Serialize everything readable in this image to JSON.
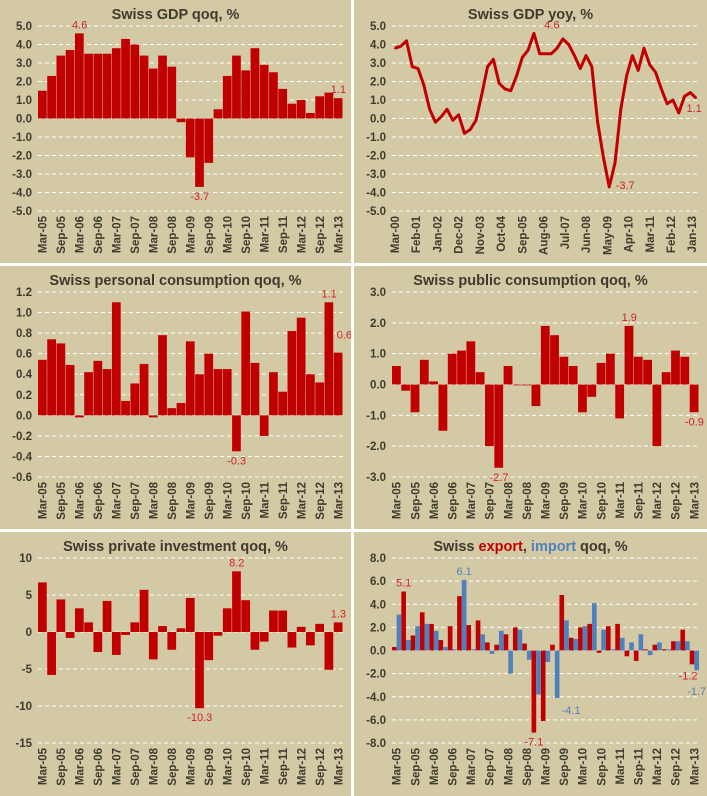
{
  "colors": {
    "background": "#D3CAA5",
    "bar": "#C00000",
    "import": "#4F81BD",
    "gridline": "#FFFFFF",
    "label_text": "#3F3A2E"
  },
  "chart_data": [
    {
      "type": "bar",
      "title_parts": [
        {
          "text": "Swiss GDP qoq, %",
          "color": "#3F3A2E"
        }
      ],
      "ylim": [
        -5,
        5
      ],
      "yticks": [
        5,
        4,
        3,
        2,
        1,
        0,
        -1,
        -2,
        -3,
        -4,
        -5
      ],
      "ytick_decimals": 1,
      "grid": true,
      "x_labels": [
        "Mar-05",
        "Sep-05",
        "Mar-06",
        "Sep-06",
        "Mar-07",
        "Sep-07",
        "Mar-08",
        "Sep-08",
        "Mar-09",
        "Sep-09",
        "Mar-10",
        "Sep-10",
        "Mar-11",
        "Sep-11",
        "Mar-12",
        "Sep-12",
        "Mar-13"
      ],
      "series": [
        {
          "color": "#C00000",
          "values": [
            1.5,
            2.3,
            3.4,
            3.7,
            4.6,
            3.5,
            3.5,
            3.5,
            3.8,
            4.3,
            4.0,
            3.4,
            2.7,
            3.4,
            2.8,
            -0.2,
            -2.1,
            -3.7,
            -2.4,
            0.5,
            2.3,
            3.4,
            2.6,
            3.8,
            2.9,
            2.5,
            1.6,
            0.8,
            1.0,
            0.3,
            1.2,
            1.4,
            1.1
          ]
        }
      ],
      "annotations": [
        {
          "series": 0,
          "index": 4,
          "text": "4.6"
        },
        {
          "series": 0,
          "index": 17,
          "text": "-3.7"
        },
        {
          "series": 0,
          "index": 32,
          "text": "1.1"
        }
      ]
    },
    {
      "type": "line",
      "title_parts": [
        {
          "text": "Swiss GDP yoy, %",
          "color": "#3F3A2E"
        }
      ],
      "ylim": [
        -5,
        5
      ],
      "yticks": [
        5,
        4,
        3,
        2,
        1,
        0,
        -1,
        -2,
        -3,
        -4,
        -5
      ],
      "ytick_decimals": 1,
      "grid": true,
      "x_labels": [
        "Mar-00",
        "Feb-01",
        "Jan-02",
        "Dec-02",
        "Nov-03",
        "Oct-04",
        "Sep-05",
        "Aug-06",
        "Jul-07",
        "Jun-08",
        "May-09",
        "Apr-10",
        "Mar-11",
        "Feb-12",
        "Jan-13"
      ],
      "series": [
        {
          "color": "#C00000",
          "values": [
            3.8,
            3.9,
            4.2,
            2.8,
            2.7,
            1.8,
            0.5,
            -0.2,
            0.1,
            0.5,
            -0.1,
            0.2,
            -0.8,
            -0.6,
            -0.1,
            1.3,
            2.8,
            3.2,
            1.9,
            1.6,
            1.5,
            2.3,
            3.3,
            3.7,
            4.6,
            3.5,
            3.5,
            3.5,
            3.8,
            4.3,
            4.0,
            3.4,
            2.7,
            3.4,
            2.8,
            -0.2,
            -2.1,
            -3.7,
            -2.4,
            0.5,
            2.3,
            3.4,
            2.6,
            3.8,
            2.9,
            2.5,
            1.6,
            0.8,
            1.0,
            0.3,
            1.2,
            1.4,
            1.1
          ]
        }
      ],
      "annotations": [
        {
          "series": 0,
          "index": 24,
          "text": "4.6"
        },
        {
          "series": 0,
          "index": 37,
          "text": "-3.7"
        },
        {
          "series": 0,
          "index": 52,
          "text": "1.1"
        }
      ]
    },
    {
      "type": "bar",
      "title_parts": [
        {
          "text": "Swiss personal consumption qoq, %",
          "color": "#3F3A2E"
        }
      ],
      "ylim": [
        -0.6,
        1.2
      ],
      "yticks": [
        1.2,
        1.0,
        0.8,
        0.6,
        0.4,
        0.2,
        0.0,
        -0.2,
        -0.4,
        -0.6
      ],
      "ytick_decimals": 1,
      "grid": true,
      "x_labels": [
        "Mar-05",
        "Sep-05",
        "Mar-06",
        "Sep-06",
        "Mar-07",
        "Sep-07",
        "Mar-08",
        "Sep-08",
        "Mar-09",
        "Sep-09",
        "Mar-10",
        "Sep-10",
        "Mar-11",
        "Sep-11",
        "Mar-12",
        "Sep-12",
        "Mar-13"
      ],
      "series": [
        {
          "color": "#C00000",
          "values": [
            0.54,
            0.74,
            0.7,
            0.49,
            -0.02,
            0.42,
            0.53,
            0.45,
            1.1,
            0.14,
            0.31,
            0.5,
            -0.02,
            0.78,
            0.07,
            0.12,
            0.72,
            0.4,
            0.6,
            0.45,
            0.45,
            -0.35,
            1.01,
            0.51,
            -0.2,
            0.42,
            0.23,
            0.82,
            0.95,
            0.4,
            0.32,
            1.1,
            0.61
          ]
        }
      ],
      "annotations": [
        {
          "series": 0,
          "index": 21,
          "text": "-0.3"
        },
        {
          "series": 0,
          "index": 31,
          "text": "1.1"
        },
        {
          "series": 0,
          "index": 32,
          "text": "0.6"
        }
      ]
    },
    {
      "type": "bar",
      "title_parts": [
        {
          "text": "Swiss public consumption qoq, %",
          "color": "#3F3A2E"
        }
      ],
      "ylim": [
        -3,
        3
      ],
      "yticks": [
        3,
        2,
        1,
        0,
        -1,
        -2,
        -3
      ],
      "ytick_decimals": 1,
      "grid": true,
      "x_labels": [
        "Mar-05",
        "Sep-05",
        "Mar-06",
        "Sep-06",
        "Mar-07",
        "Sep-07",
        "Mar-08",
        "Sep-08",
        "Mar-09",
        "Sep-09",
        "Mar-10",
        "Sep-10",
        "Mar-11",
        "Sep-11",
        "Mar-12",
        "Sep-12",
        "Mar-13"
      ],
      "series": [
        {
          "color": "#C00000",
          "values": [
            0.6,
            -0.2,
            -0.9,
            0.8,
            0.1,
            -1.5,
            1.0,
            1.1,
            1.4,
            0.4,
            -2.0,
            -2.7,
            0.6,
            0.0,
            0.0,
            -0.7,
            1.9,
            1.6,
            0.9,
            0.6,
            -0.9,
            -0.4,
            0.7,
            1.0,
            -1.1,
            1.9,
            0.9,
            0.8,
            -2.0,
            0.4,
            1.1,
            0.9,
            -0.9
          ]
        }
      ],
      "annotations": [
        {
          "series": 0,
          "index": 11,
          "text": "-2.7"
        },
        {
          "series": 0,
          "index": 25,
          "text": "1.9"
        },
        {
          "series": 0,
          "index": 32,
          "text": "-0.9"
        }
      ]
    },
    {
      "type": "bar",
      "title_parts": [
        {
          "text": "Swiss private investment qoq, %",
          "color": "#3F3A2E"
        }
      ],
      "ylim": [
        -15,
        10
      ],
      "yticks": [
        10,
        5,
        0,
        -5,
        -10,
        -15
      ],
      "ytick_decimals": 0,
      "grid": true,
      "x_labels": [
        "Mar-05",
        "Sep-05",
        "Mar-06",
        "Sep-06",
        "Mar-07",
        "Sep-07",
        "Mar-08",
        "Sep-08",
        "Mar-09",
        "Sep-09",
        "Mar-10",
        "Sep-10",
        "Mar-11",
        "Sep-11",
        "Mar-12",
        "Sep-12",
        "Mar-13"
      ],
      "series": [
        {
          "color": "#C00000",
          "values": [
            6.7,
            -5.8,
            4.4,
            -0.8,
            3.2,
            1.3,
            -2.7,
            4.2,
            -3.1,
            -0.4,
            1.3,
            5.7,
            -3.7,
            0.8,
            -2.4,
            0.5,
            4.6,
            -10.3,
            -3.8,
            -0.5,
            3.2,
            8.2,
            4.3,
            -2.4,
            -1.3,
            2.9,
            2.9,
            -2.1,
            0.7,
            -1.8,
            1.1,
            -5.1,
            1.3
          ]
        }
      ],
      "annotations": [
        {
          "series": 0,
          "index": 17,
          "text": "-10.3"
        },
        {
          "series": 0,
          "index": 21,
          "text": "8.2"
        },
        {
          "series": 0,
          "index": 32,
          "text": "1.3"
        }
      ]
    },
    {
      "type": "bar",
      "title_parts": [
        {
          "text": "Swiss ",
          "color": "#3F3A2E"
        },
        {
          "text": "export",
          "color": "#C00000"
        },
        {
          "text": ", ",
          "color": "#3F3A2E"
        },
        {
          "text": "import",
          "color": "#4F81BD"
        },
        {
          "text": " qoq, %",
          "color": "#3F3A2E"
        }
      ],
      "ylim": [
        -8,
        8
      ],
      "yticks": [
        8,
        6,
        4,
        2,
        0,
        -2,
        -4,
        -6,
        -8
      ],
      "ytick_decimals": 1,
      "grid": true,
      "x_labels": [
        "Mar-05",
        "Sep-05",
        "Mar-06",
        "Sep-06",
        "Mar-07",
        "Sep-07",
        "Mar-08",
        "Sep-08",
        "Mar-09",
        "Sep-09",
        "Mar-10",
        "Sep-10",
        "Mar-11",
        "Sep-11",
        "Mar-12",
        "Sep-12",
        "Mar-13"
      ],
      "series": [
        {
          "name": "export",
          "color": "#C00000",
          "values": [
            0.3,
            5.1,
            1.3,
            3.3,
            2.3,
            0.9,
            2.1,
            4.7,
            2.2,
            2.6,
            0.7,
            0.5,
            1.4,
            2.0,
            0.6,
            -7.1,
            -6.1,
            0.5,
            4.8,
            1.1,
            2.0,
            2.3,
            -0.2,
            2.1,
            2.3,
            -0.5,
            -0.9,
            0.1,
            0.5,
            0.1,
            0.8,
            1.8,
            -1.2
          ]
        },
        {
          "name": "import",
          "color": "#4F81BD",
          "values": [
            3.1,
            0.9,
            2.1,
            2.3,
            1.7,
            0.3,
            0.1,
            6.1,
            0.1,
            1.4,
            -0.3,
            1.7,
            -2.0,
            1.8,
            -0.8,
            -3.8,
            -1.0,
            -4.1,
            2.6,
            1.0,
            2.1,
            4.1,
            1.8,
            0.1,
            1.1,
            0.7,
            1.4,
            -0.4,
            0.7,
            0.1,
            0.8,
            0.8,
            -1.7
          ]
        }
      ],
      "annotations": [
        {
          "series": 0,
          "index": 1,
          "text": "5.1"
        },
        {
          "series": 1,
          "index": 7,
          "text": "6.1"
        },
        {
          "series": 0,
          "index": 15,
          "text": "-7.1"
        },
        {
          "series": 1,
          "index": 17,
          "text": "-4.1"
        },
        {
          "series": 0,
          "index": 32,
          "text": "-1.2"
        },
        {
          "series": 1,
          "index": 32,
          "text": "-1.7"
        }
      ]
    }
  ]
}
